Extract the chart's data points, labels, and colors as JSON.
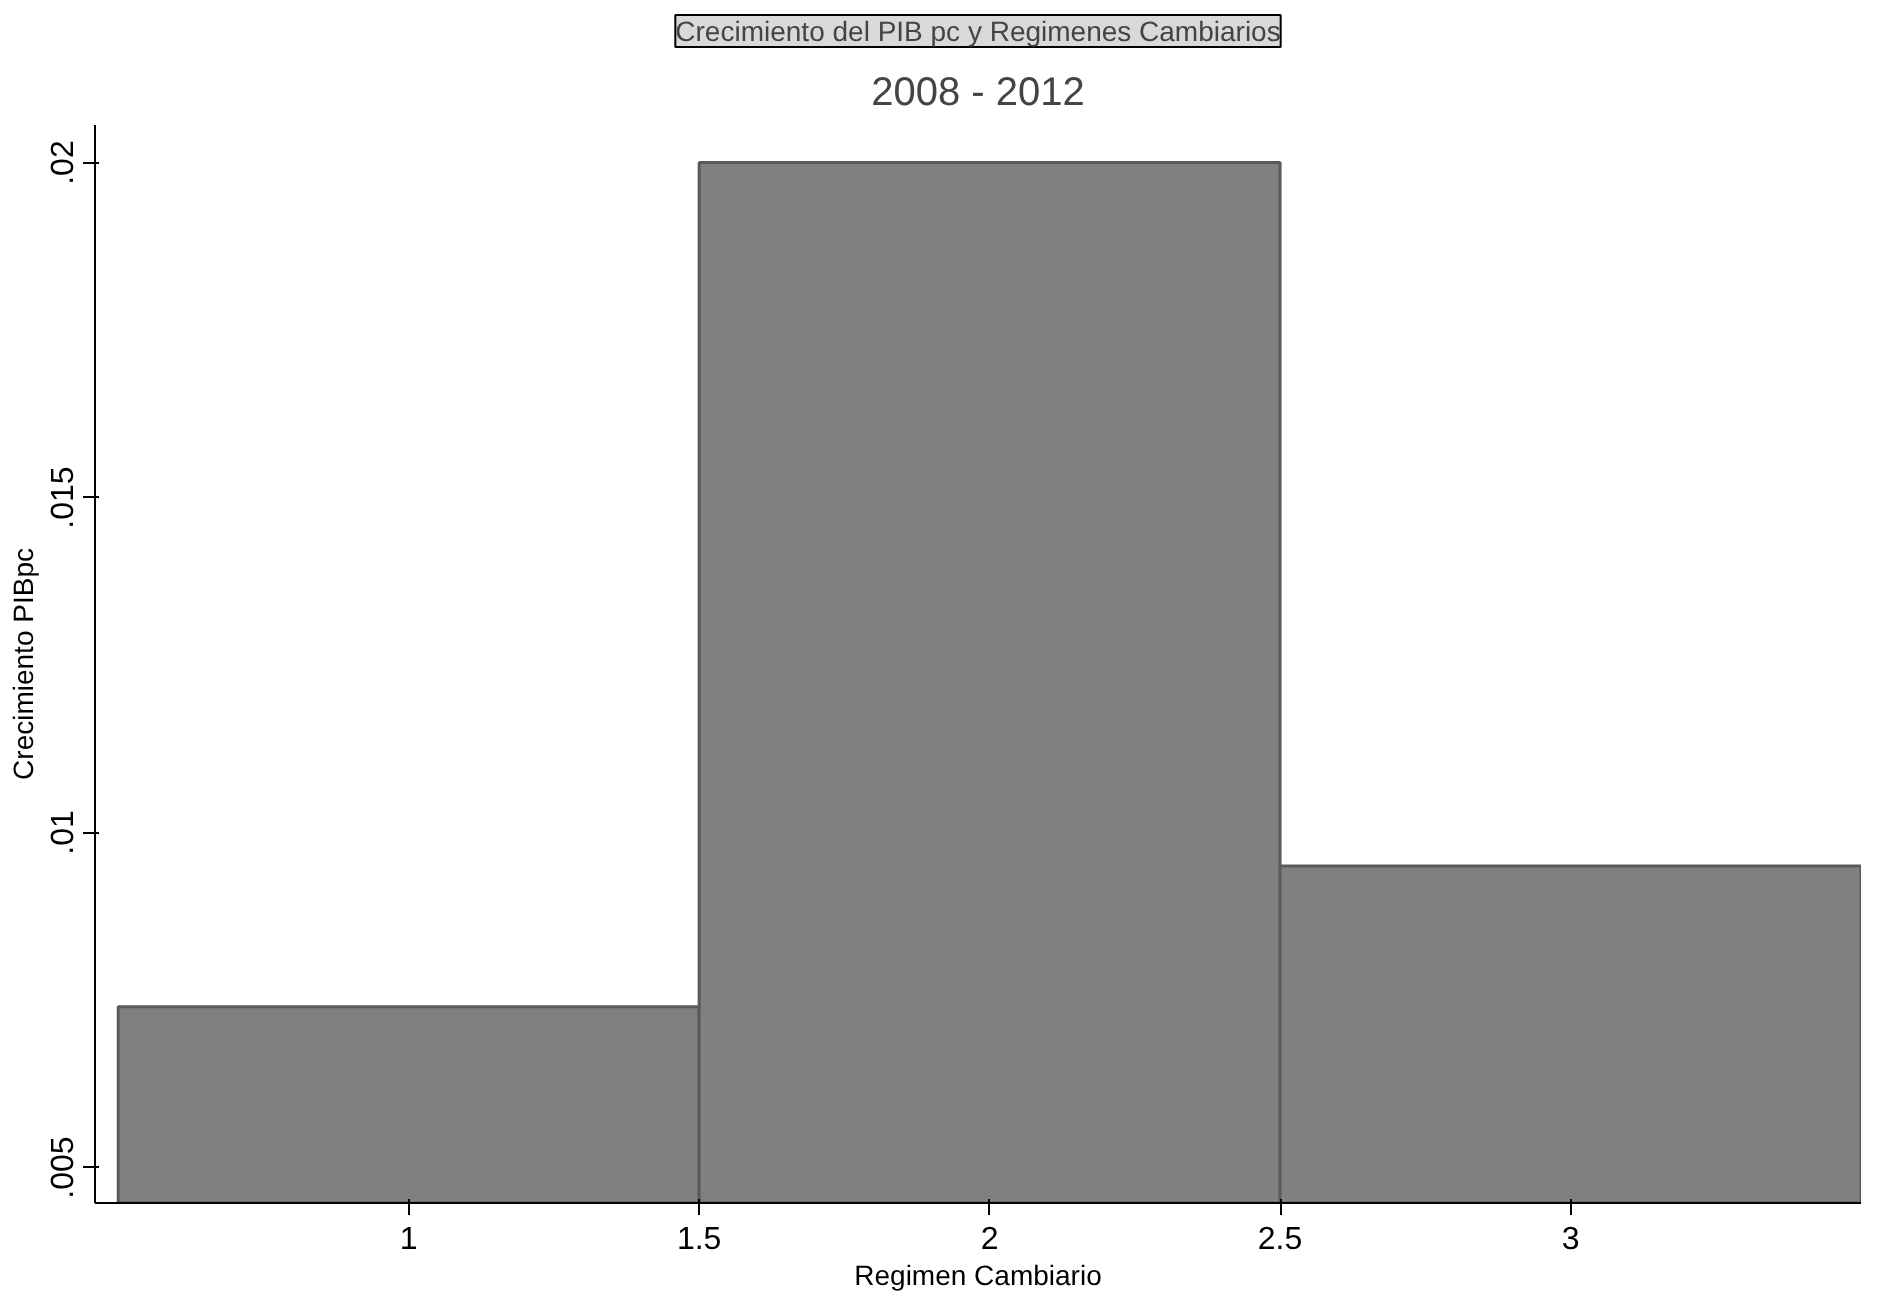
{
  "chart_data": {
    "type": "histogram",
    "title": "Crecimiento del PIB pc y Regimenes Cambiarios",
    "subtitle": "2008 - 2012",
    "xlabel": "Regimen Cambiario",
    "ylabel": "Crecimiento PIBpc",
    "bins": [
      0.5,
      1.5,
      2.5,
      3.5
    ],
    "values": [
      0.0074,
      0.02,
      0.0095
    ],
    "color": "#808080",
    "xlim": [
      0.46,
      3.5
    ],
    "ylim": [
      0.00447,
      0.02056
    ],
    "xticks": [
      1,
      1.5,
      2,
      2.5,
      3
    ],
    "yticks": [
      {
        "value": 0.005,
        "label": ".005"
      },
      {
        "value": 0.01,
        "label": ".01"
      },
      {
        "value": 0.015,
        "label": ".015"
      },
      {
        "value": 0.02,
        "label": ".02"
      }
    ],
    "grid": false
  }
}
